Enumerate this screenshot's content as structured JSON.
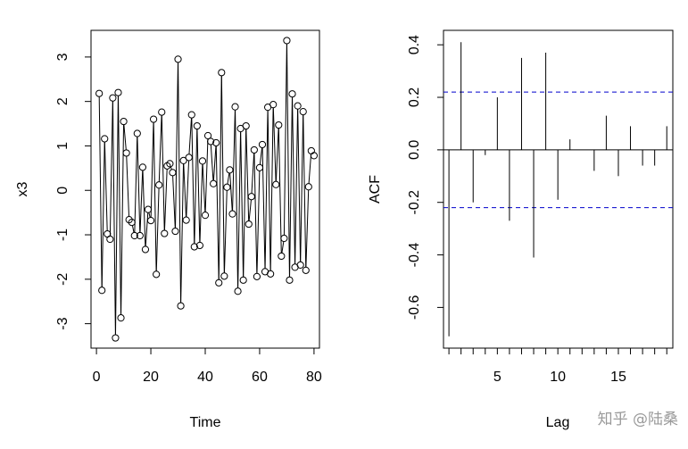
{
  "watermark": "知乎 @陆桑",
  "chart_data": [
    {
      "type": "line",
      "marker": "open-circle",
      "xlabel": "Time",
      "ylabel": "x3",
      "xlim": [
        -2,
        82
      ],
      "ylim": [
        -3.55,
        3.6
      ],
      "xticks": [
        0,
        20,
        40,
        60,
        80
      ],
      "yticks": [
        -3,
        -2,
        -1,
        0,
        1,
        2,
        3
      ],
      "x": [
        1,
        2,
        3,
        4,
        5,
        6,
        7,
        8,
        9,
        10,
        11,
        12,
        13,
        14,
        15,
        16,
        17,
        18,
        19,
        20,
        21,
        22,
        23,
        24,
        25,
        26,
        27,
        28,
        29,
        30,
        31,
        32,
        33,
        34,
        35,
        36,
        37,
        38,
        39,
        40,
        41,
        42,
        43,
        44,
        45,
        46,
        47,
        48,
        49,
        50,
        51,
        52,
        53,
        54,
        55,
        56,
        57,
        58,
        59,
        60,
        61,
        62,
        63,
        64,
        65,
        66,
        67,
        68,
        69,
        70,
        71,
        72,
        73,
        74,
        75,
        76,
        77,
        78,
        79,
        80
      ],
      "y": [
        2.18,
        -2.25,
        1.16,
        -0.98,
        -1.1,
        2.08,
        -3.32,
        2.2,
        -2.87,
        1.55,
        0.84,
        -0.66,
        -0.72,
        -1.02,
        1.28,
        -1.02,
        0.52,
        -1.33,
        -0.43,
        -0.68,
        1.6,
        -1.89,
        0.12,
        1.76,
        -0.97,
        0.55,
        0.6,
        0.4,
        -0.92,
        2.95,
        -2.6,
        0.67,
        -0.67,
        0.74,
        1.7,
        -1.27,
        1.45,
        -1.24,
        0.66,
        -0.56,
        1.23,
        1.1,
        0.15,
        1.07,
        -2.08,
        2.65,
        -1.93,
        0.07,
        0.46,
        -0.53,
        1.88,
        -2.27,
        1.39,
        -2.02,
        1.45,
        -0.76,
        -0.14,
        0.91,
        -1.94,
        0.51,
        1.03,
        -1.83,
        1.87,
        -1.88,
        1.93,
        0.13,
        1.47,
        -1.48,
        -1.08,
        3.37,
        -2.02,
        2.17,
        -1.73,
        1.9,
        -1.68,
        1.77,
        -1.8,
        0.08,
        0.89,
        0.78
      ]
    },
    {
      "type": "bar",
      "style": "vertical-lines",
      "xlabel": "Lag",
      "ylabel": "ACF",
      "xlim": [
        0.55,
        19.5
      ],
      "ylim": [
        -0.755,
        0.455
      ],
      "xticks": [
        5,
        10,
        15
      ],
      "minor_xticks": [
        1,
        2,
        3,
        4,
        5,
        6,
        7,
        8,
        9,
        10,
        11,
        12,
        13,
        14,
        15,
        16,
        17,
        18,
        19
      ],
      "yticks": [
        -0.6,
        -0.4,
        -0.2,
        0.0,
        0.2,
        0.4
      ],
      "ytick_labels": [
        "-0.6",
        "-0.4",
        "-0.2",
        "0.0",
        "0.2",
        "0.4"
      ],
      "lags": [
        1,
        2,
        3,
        4,
        5,
        6,
        7,
        8,
        9,
        10,
        11,
        12,
        13,
        14,
        15,
        16,
        17,
        18,
        19
      ],
      "values": [
        -0.71,
        0.41,
        -0.2,
        -0.02,
        0.2,
        -0.27,
        0.35,
        -0.41,
        0.37,
        -0.19,
        0.04,
        0.0,
        -0.08,
        0.13,
        -0.1,
        0.09,
        -0.06,
        -0.06,
        0.09
      ],
      "confidence_band": [
        0.22,
        -0.22
      ],
      "band_color": "#0000cc"
    }
  ]
}
